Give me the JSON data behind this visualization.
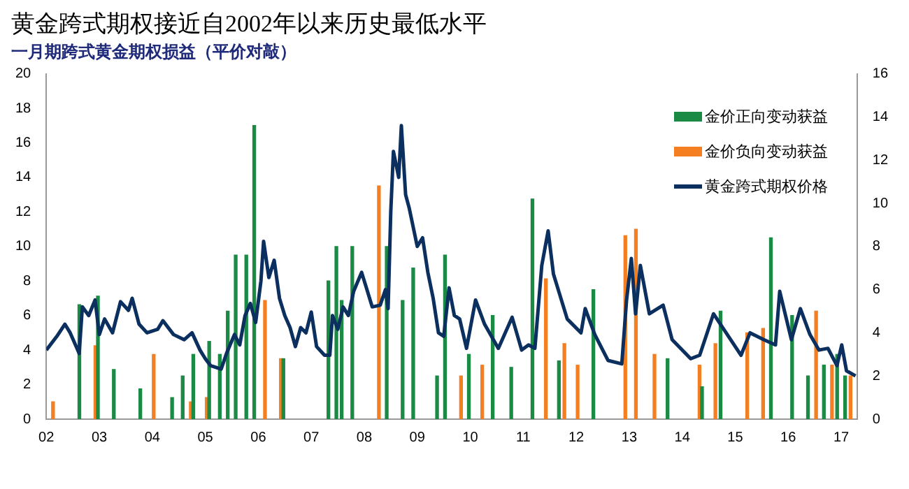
{
  "chart_data": {
    "type": "bar",
    "title": "黄金跨式期权接近自2002年以来历史最低水平",
    "subtitle": "一月期跨式黄金期权损益（平价对敲）",
    "xlim": [
      2002,
      2017.3
    ],
    "xticks": [
      {
        "value": 2002,
        "label": "02"
      },
      {
        "value": 2003,
        "label": "03"
      },
      {
        "value": 2004,
        "label": "04"
      },
      {
        "value": 2005,
        "label": "05"
      },
      {
        "value": 2006,
        "label": "06"
      },
      {
        "value": 2007,
        "label": "07"
      },
      {
        "value": 2008,
        "label": "08"
      },
      {
        "value": 2009,
        "label": "09"
      },
      {
        "value": 2010,
        "label": "10"
      },
      {
        "value": 2011,
        "label": "11"
      },
      {
        "value": 2012,
        "label": "12"
      },
      {
        "value": 2013,
        "label": "13"
      },
      {
        "value": 2014,
        "label": "14"
      },
      {
        "value": 2015,
        "label": "15"
      },
      {
        "value": 2016,
        "label": "16"
      },
      {
        "value": 2017,
        "label": "17"
      }
    ],
    "ylim": [
      0,
      20
    ],
    "yticks": [
      0,
      2,
      4,
      6,
      8,
      10,
      12,
      14,
      16,
      18,
      20
    ],
    "y2lim": [
      0,
      16
    ],
    "y2ticks": [
      0,
      2,
      4,
      6,
      8,
      10,
      12,
      14,
      16
    ],
    "grid": false,
    "legend": "top right",
    "series": [
      {
        "name": "金价正向变动获益",
        "axis": "y2",
        "color": "#1a8a45",
        "x": [
          2002.65,
          2003.0,
          2003.3,
          2003.8,
          2004.4,
          2004.6,
          2004.8,
          2005.1,
          2005.3,
          2005.45,
          2005.6,
          2005.8,
          2005.95,
          2006.5,
          2007.35,
          2007.5,
          2007.6,
          2007.8,
          2008.45,
          2008.75,
          2008.95,
          2009.4,
          2009.55,
          2010.0,
          2010.45,
          2010.8,
          2011.2,
          2011.7,
          2012.35,
          2013.75,
          2014.4,
          2014.75,
          2015.7,
          2016.1,
          2016.4,
          2016.7,
          2016.95,
          2017.1
        ],
        "values": [
          5.3,
          5.7,
          2.3,
          1.4,
          1.0,
          2.0,
          3.0,
          3.6,
          3.0,
          5.0,
          7.6,
          7.6,
          13.6,
          2.8,
          6.4,
          8.0,
          5.5,
          8.0,
          8.0,
          5.5,
          7.0,
          2.0,
          7.6,
          3.0,
          4.8,
          2.4,
          10.2,
          2.7,
          6.0,
          2.8,
          1.5,
          5.0,
          8.4,
          4.8,
          2.0,
          2.5,
          3.0,
          2.0
        ]
      },
      {
        "name": "金价负向变动获益",
        "axis": "y2",
        "color": "#f47e20",
        "x": [
          2002.1,
          2002.9,
          2004.0,
          2004.7,
          2005.0,
          2006.1,
          2006.4,
          2008.25,
          2009.8,
          2010.2,
          2011.4,
          2011.75,
          2012.0,
          2012.9,
          2013.1,
          2013.45,
          2014.3,
          2014.6,
          2015.2,
          2015.5,
          2016.5,
          2016.8,
          2017.15
        ],
        "values": [
          0.8,
          3.4,
          3.0,
          0.8,
          1.0,
          5.5,
          2.8,
          10.8,
          2.0,
          2.5,
          6.5,
          3.5,
          2.5,
          8.5,
          8.8,
          3.0,
          2.5,
          3.5,
          4.0,
          4.2,
          5.0,
          2.5,
          2.0
        ]
      },
      {
        "name": "黄金跨式期权价格",
        "type": "line",
        "axis": "y",
        "color": "#0b2f5e",
        "x": [
          2002.0,
          2002.2,
          2002.35,
          2002.45,
          2002.55,
          2002.62,
          2002.68,
          2002.8,
          2002.92,
          2003.0,
          2003.1,
          2003.25,
          2003.4,
          2003.55,
          2003.62,
          2003.75,
          2003.9,
          2004.1,
          2004.2,
          2004.4,
          2004.6,
          2004.75,
          2004.9,
          2005.0,
          2005.1,
          2005.3,
          2005.4,
          2005.55,
          2005.65,
          2005.75,
          2005.85,
          2005.95,
          2006.05,
          2006.1,
          2006.2,
          2006.3,
          2006.4,
          2006.5,
          2006.6,
          2006.7,
          2006.8,
          2006.9,
          2007.0,
          2007.1,
          2007.25,
          2007.35,
          2007.4,
          2007.5,
          2007.6,
          2007.7,
          2007.8,
          2007.95,
          2008.05,
          2008.15,
          2008.3,
          2008.4,
          2008.45,
          2008.5,
          2008.55,
          2008.65,
          2008.7,
          2008.78,
          2008.85,
          2009.0,
          2009.1,
          2009.2,
          2009.3,
          2009.4,
          2009.5,
          2009.6,
          2009.7,
          2009.8,
          2009.93,
          2010.1,
          2010.27,
          2010.53,
          2010.79,
          2010.97,
          2011.1,
          2011.22,
          2011.35,
          2011.47,
          2011.57,
          2011.83,
          2012.09,
          2012.17,
          2012.35,
          2012.6,
          2012.86,
          2012.95,
          2013.04,
          2013.12,
          2013.21,
          2013.38,
          2013.64,
          2013.81,
          2014.16,
          2014.33,
          2014.59,
          2014.85,
          2015.11,
          2015.28,
          2015.54,
          2015.76,
          2015.84,
          2016.06,
          2016.23,
          2016.41,
          2016.58,
          2016.75,
          2016.92,
          2017.01,
          2017.1,
          2017.27
        ],
        "values": [
          4.0,
          4.8,
          5.5,
          5.0,
          4.3,
          3.8,
          6.5,
          6.0,
          6.9,
          4.9,
          5.8,
          5.0,
          6.8,
          6.3,
          7.0,
          5.5,
          5.0,
          5.2,
          5.7,
          4.9,
          4.6,
          5.0,
          4.0,
          3.5,
          3.1,
          2.9,
          3.8,
          4.9,
          4.3,
          6.0,
          6.7,
          5.6,
          8.0,
          10.3,
          8.2,
          9.2,
          7.0,
          6.0,
          5.3,
          4.2,
          5.3,
          5.0,
          6.2,
          4.2,
          3.7,
          3.7,
          6.0,
          5.2,
          6.5,
          6.0,
          7.4,
          8.5,
          7.5,
          6.5,
          6.6,
          7.5,
          6.4,
          12.0,
          15.5,
          14.0,
          17.0,
          13.0,
          12.2,
          10.0,
          10.5,
          8.5,
          7.0,
          5.0,
          4.8,
          7.6,
          6.0,
          5.8,
          4.1,
          6.9,
          5.5,
          4.1,
          5.9,
          4.0,
          4.3,
          4.1,
          8.9,
          10.9,
          8.4,
          5.8,
          5.0,
          6.4,
          4.9,
          3.4,
          3.2,
          6.9,
          9.3,
          6.1,
          8.9,
          6.1,
          6.6,
          4.6,
          3.5,
          3.7,
          6.1,
          4.9,
          3.7,
          5.0,
          4.6,
          4.3,
          7.4,
          4.6,
          6.4,
          4.9,
          4.0,
          4.1,
          3.1,
          4.3,
          2.8,
          2.5
        ]
      }
    ]
  }
}
